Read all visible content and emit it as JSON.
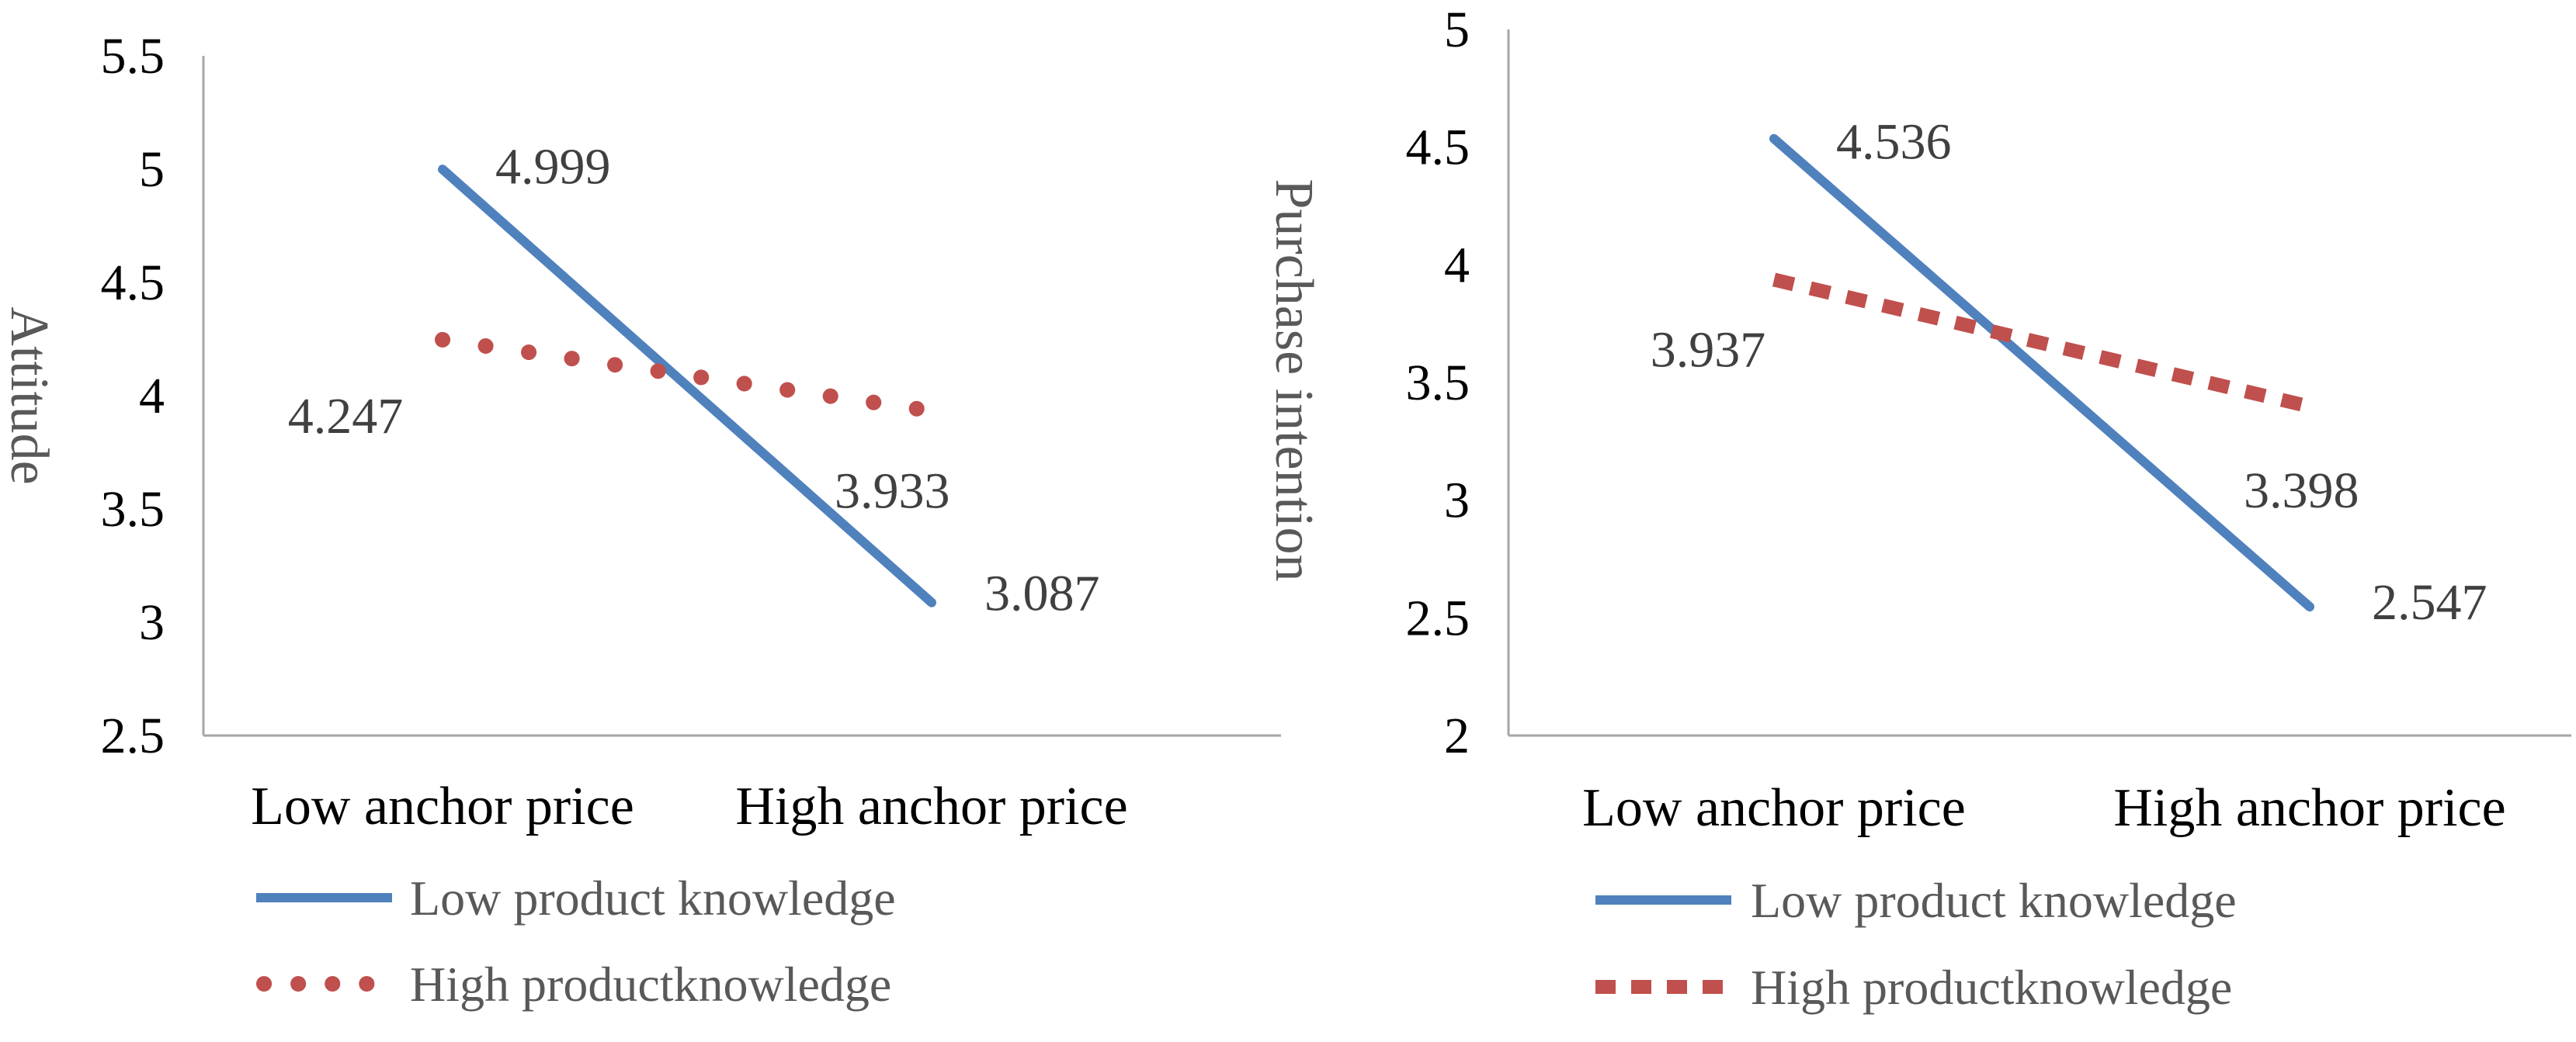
{
  "colors": {
    "low_knowledge": "#4F81BD",
    "high_knowledge": "#C0504D",
    "axis": "#A6A6A6"
  },
  "chart_data": [
    {
      "type": "line",
      "ylabel": "Attitude",
      "xlabel": "",
      "categories": [
        "Low anchor price",
        "High anchor price"
      ],
      "ylim": [
        2.5,
        5.5
      ],
      "yticks": [
        "2.5",
        "3",
        "3.5",
        "4",
        "4.5",
        "5",
        "5.5"
      ],
      "grid": false,
      "legend_position": "bottom",
      "series": [
        {
          "name": "Low product knowledge",
          "values": [
            4.999,
            3.087
          ],
          "labels": [
            "4.999",
            "3.087"
          ],
          "style": "solid"
        },
        {
          "name": "High productknowledge",
          "values": [
            4.247,
            3.933
          ],
          "labels": [
            "4.247",
            "3.933"
          ],
          "style": "dotted"
        }
      ]
    },
    {
      "type": "line",
      "ylabel": "Purchase intention",
      "xlabel": "",
      "categories": [
        "Low anchor price",
        "High anchor price"
      ],
      "ylim": [
        2,
        5
      ],
      "yticks": [
        "2",
        "2.5",
        "3",
        "3.5",
        "4",
        "4.5",
        "5"
      ],
      "grid": false,
      "legend_position": "bottom",
      "series": [
        {
          "name": "Low product knowledge",
          "values": [
            4.536,
            2.547
          ],
          "labels": [
            "4.536",
            "2.547"
          ],
          "style": "solid"
        },
        {
          "name": "High productknowledge",
          "values": [
            3.937,
            3.398
          ],
          "labels": [
            "3.937",
            "3.398"
          ],
          "style": "dashed"
        }
      ]
    }
  ]
}
